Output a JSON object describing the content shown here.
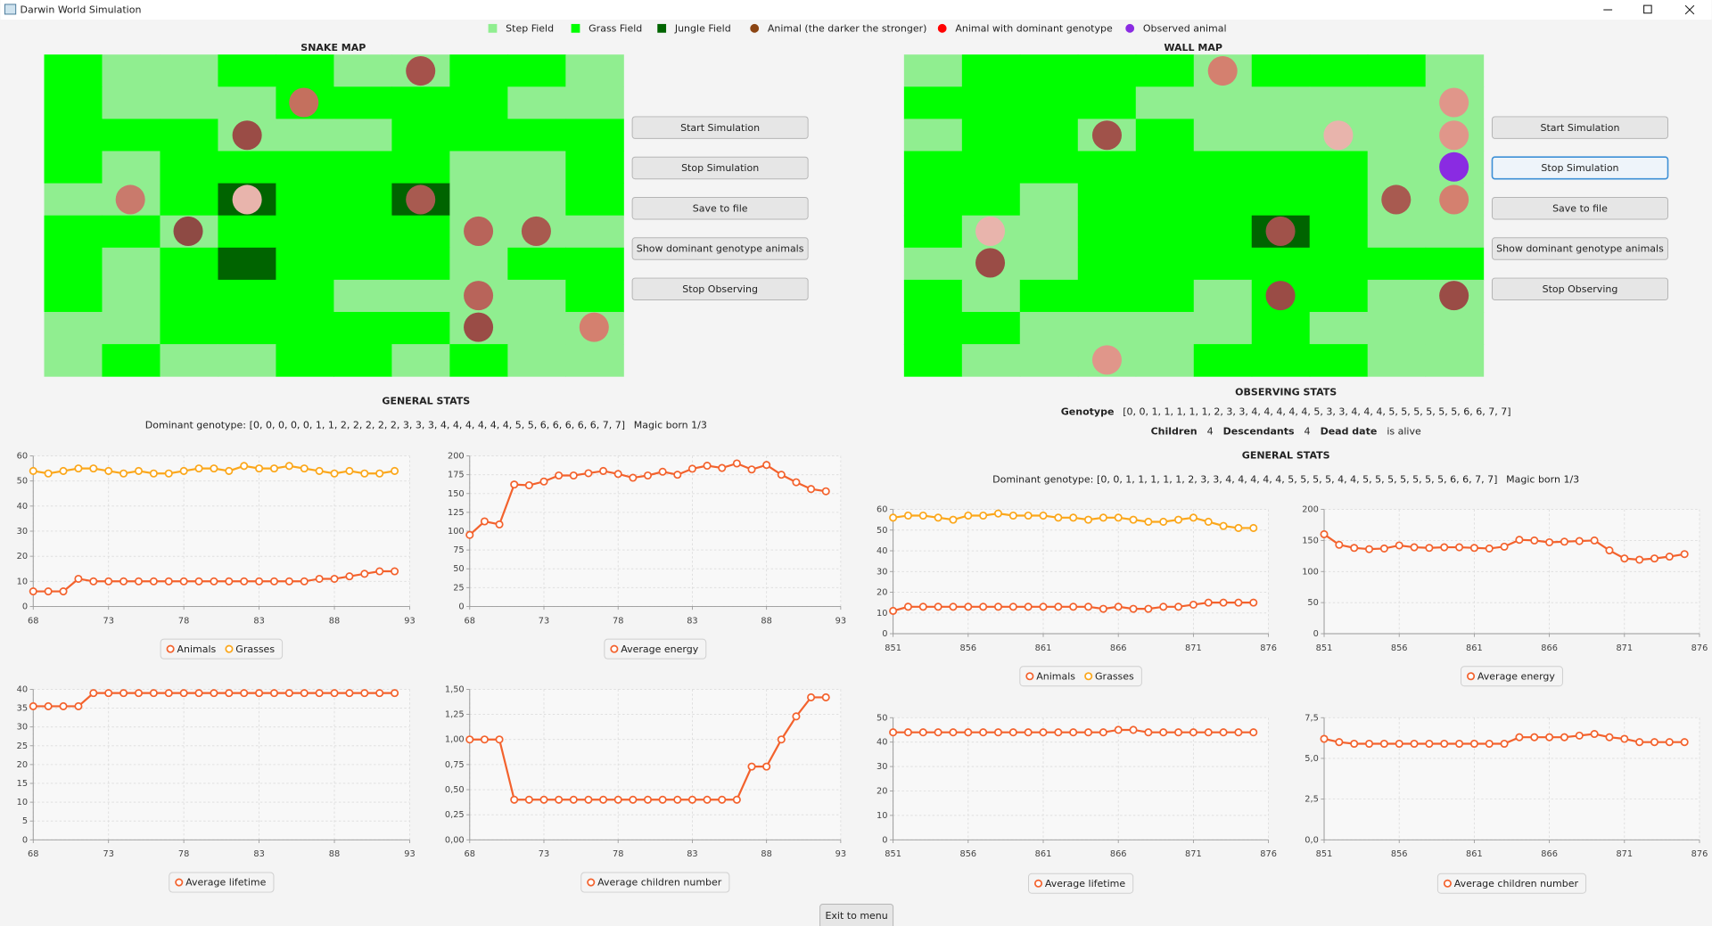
{
  "window": {
    "title": "Darwin World Simulation"
  },
  "legend": [
    "Step Field",
    "Grass Field",
    "Jungle Field",
    "Animal (the darker the stronger)",
    "Animal with dominant genotype",
    "Observed animal"
  ],
  "panels": [
    {
      "map_title": "SNAKE MAP",
      "buttons": [
        "Start Simulation",
        "Stop Simulation",
        "Save to file",
        "Show dominant genotype animals",
        "Stop Observing"
      ],
      "general_title": "GENERAL STATS",
      "dominant_genotype_label": "Dominant genotype:",
      "dominant_genotype": "[0, 0, 0, 0, 0, 1, 1, 2, 2, 2, 2, 2, 3, 3, 3, 4, 4, 4, 4, 4, 4, 5, 5, 6, 6, 6, 6, 6, 7, 7]",
      "magic_born": "Magic born 1/3",
      "charts": [
        {
          "type": "line",
          "x": [
            68,
            69,
            70,
            71,
            72,
            73,
            74,
            75,
            76,
            77,
            78,
            79,
            80,
            81,
            82,
            83,
            84,
            85,
            86,
            87,
            88,
            89,
            90,
            91,
            92
          ],
          "xlim": [
            68,
            93
          ],
          "xticks": [
            68,
            73,
            78,
            83,
            88,
            93
          ],
          "ylim": [
            0,
            60
          ],
          "yticks": [
            0,
            10,
            20,
            30,
            40,
            50,
            60
          ],
          "grid": true,
          "series": [
            {
              "name": "Animals",
              "color": "#f3622d",
              "values": [
                6,
                6,
                6,
                11,
                10,
                10,
                10,
                10,
                10,
                10,
                10,
                10,
                10,
                10,
                10,
                10,
                10,
                10,
                10,
                11,
                11,
                12,
                13,
                14,
                14
              ]
            },
            {
              "name": "Grasses",
              "color": "#fba71b",
              "values": [
                54,
                53,
                54,
                55,
                55,
                54,
                53,
                54,
                53,
                53,
                54,
                55,
                55,
                54,
                56,
                55,
                55,
                56,
                55,
                54,
                53,
                54,
                53,
                53,
                54
              ]
            }
          ]
        },
        {
          "type": "line",
          "x": [
            68,
            69,
            70,
            71,
            72,
            73,
            74,
            75,
            76,
            77,
            78,
            79,
            80,
            81,
            82,
            83,
            84,
            85,
            86,
            87,
            88,
            89,
            90,
            91,
            92
          ],
          "xlim": [
            68,
            93
          ],
          "xticks": [
            68,
            73,
            78,
            83,
            88,
            93
          ],
          "ylim": [
            0,
            200
          ],
          "yticks": [
            0,
            25,
            50,
            75,
            100,
            125,
            150,
            175,
            200
          ],
          "grid": true,
          "series": [
            {
              "name": "Average energy",
              "color": "#f3622d",
              "values": [
                95,
                113,
                109,
                162,
                161,
                166,
                174,
                174,
                177,
                180,
                176,
                171,
                174,
                179,
                175,
                183,
                187,
                184,
                190,
                182,
                188,
                175,
                165,
                156,
                153
              ]
            }
          ]
        },
        {
          "type": "line",
          "x": [
            68,
            69,
            70,
            71,
            72,
            73,
            74,
            75,
            76,
            77,
            78,
            79,
            80,
            81,
            82,
            83,
            84,
            85,
            86,
            87,
            88,
            89,
            90,
            91,
            92
          ],
          "xlim": [
            68,
            93
          ],
          "xticks": [
            68,
            73,
            78,
            83,
            88,
            93
          ],
          "ylim": [
            0,
            40
          ],
          "yticks": [
            0,
            5,
            10,
            15,
            20,
            25,
            30,
            35,
            40
          ],
          "grid": true,
          "series": [
            {
              "name": "Average lifetime",
              "color": "#f3622d",
              "values": [
                35.5,
                35.5,
                35.5,
                35.5,
                39,
                39,
                39,
                39,
                39,
                39,
                39,
                39,
                39,
                39,
                39,
                39,
                39,
                39,
                39,
                39,
                39,
                39,
                39,
                39,
                39
              ]
            }
          ]
        },
        {
          "type": "line",
          "x": [
            68,
            69,
            70,
            71,
            72,
            73,
            74,
            75,
            76,
            77,
            78,
            79,
            80,
            81,
            82,
            83,
            84,
            85,
            86,
            87,
            88,
            89,
            90,
            91,
            92
          ],
          "xlim": [
            68,
            93
          ],
          "xticks": [
            68,
            73,
            78,
            83,
            88,
            93
          ],
          "ylim": [
            0,
            1.5
          ],
          "yticks": [
            {
              "value": 0,
              "label": "0,00"
            },
            {
              "value": 0.25,
              "label": "0,25"
            },
            {
              "value": 0.5,
              "label": "0,50"
            },
            {
              "value": 0.75,
              "label": "0,75"
            },
            {
              "value": 1,
              "label": "1,00"
            },
            {
              "value": 1.25,
              "label": "1,25"
            },
            {
              "value": 1.5,
              "label": "1,50"
            }
          ],
          "grid": true,
          "series": [
            {
              "name": "Average children number",
              "color": "#f3622d",
              "values": [
                1,
                1,
                1,
                0.4,
                0.4,
                0.4,
                0.4,
                0.4,
                0.4,
                0.4,
                0.4,
                0.4,
                0.4,
                0.4,
                0.4,
                0.4,
                0.4,
                0.4,
                0.4,
                0.73,
                0.73,
                1,
                1.23,
                1.42,
                1.42
              ]
            }
          ]
        }
      ]
    },
    {
      "map_title": "WALL MAP",
      "buttons": [
        "Start Simulation",
        "Stop Simulation",
        "Save to file",
        "Show dominant genotype animals",
        "Stop Observing"
      ],
      "observing_title": "OBSERVING STATS",
      "genotype_label": "Genotype",
      "genotype": "[0, 0, 1, 1, 1, 1, 1, 2, 3, 3, 4, 4, 4, 4, 4, 5, 3, 3, 4, 4, 4, 5, 5, 5, 5, 5, 5, 6, 6, 7, 7]",
      "children_label": "Children",
      "children": 4,
      "descendants_label": "Descendants",
      "descendants": 4,
      "dead_date_label": "Dead date",
      "dead_date": "is alive",
      "general_title": "GENERAL STATS",
      "dominant_genotype_label": "Dominant genotype:",
      "dominant_genotype": "[0, 0, 1, 1, 1, 1, 1, 2, 3, 3, 4, 4, 4, 4, 4, 5, 5, 5, 5, 4, 4, 5, 5, 5, 5, 5, 5, 5, 6, 6, 7, 7]",
      "magic_born": "Magic born 1/3",
      "charts": [
        {
          "type": "line",
          "x": [
            851,
            852,
            853,
            854,
            855,
            856,
            857,
            858,
            859,
            860,
            861,
            862,
            863,
            864,
            865,
            866,
            867,
            868,
            869,
            870,
            871,
            872,
            873,
            874,
            875
          ],
          "xlim": [
            851,
            876
          ],
          "xticks": [
            851,
            856,
            861,
            866,
            871,
            876
          ],
          "ylim": [
            0,
            60
          ],
          "yticks": [
            0,
            10,
            20,
            30,
            40,
            50,
            60
          ],
          "grid": true,
          "series": [
            {
              "name": "Animals",
              "color": "#f3622d",
              "values": [
                11,
                13,
                13,
                13,
                13,
                13,
                13,
                13,
                13,
                13,
                13,
                13,
                13,
                13,
                12,
                13,
                12,
                12,
                13,
                13,
                14,
                15,
                15,
                15,
                15
              ]
            },
            {
              "name": "Grasses",
              "color": "#fba71b",
              "values": [
                56,
                57,
                57,
                56,
                55,
                57,
                57,
                58,
                57,
                57,
                57,
                56,
                56,
                55,
                56,
                56,
                55,
                54,
                54,
                55,
                56,
                54,
                52,
                51,
                51
              ]
            }
          ]
        },
        {
          "type": "line",
          "x": [
            851,
            852,
            853,
            854,
            855,
            856,
            857,
            858,
            859,
            860,
            861,
            862,
            863,
            864,
            865,
            866,
            867,
            868,
            869,
            870,
            871,
            872,
            873,
            874,
            875
          ],
          "xlim": [
            851,
            876
          ],
          "xticks": [
            851,
            856,
            861,
            866,
            871,
            876
          ],
          "ylim": [
            0,
            200
          ],
          "yticks": [
            0,
            50,
            100,
            150,
            200
          ],
          "grid": true,
          "series": [
            {
              "name": "Average energy",
              "color": "#f3622d",
              "values": [
                160,
                143,
                138,
                136,
                137,
                142,
                139,
                138,
                139,
                139,
                138,
                137,
                140,
                151,
                150,
                147,
                148,
                149,
                150,
                134,
                121,
                119,
                121,
                124,
                128
              ]
            }
          ]
        },
        {
          "type": "line",
          "x": [
            851,
            852,
            853,
            854,
            855,
            856,
            857,
            858,
            859,
            860,
            861,
            862,
            863,
            864,
            865,
            866,
            867,
            868,
            869,
            870,
            871,
            872,
            873,
            874,
            875
          ],
          "xlim": [
            851,
            876
          ],
          "xticks": [
            851,
            856,
            861,
            866,
            871,
            876
          ],
          "ylim": [
            0,
            50
          ],
          "yticks": [
            0,
            10,
            20,
            30,
            40,
            50
          ],
          "grid": true,
          "series": [
            {
              "name": "Average lifetime",
              "color": "#f3622d",
              "values": [
                44,
                44,
                44,
                44,
                44,
                44,
                44,
                44,
                44,
                44,
                44,
                44,
                44,
                44,
                44,
                45,
                45,
                44,
                44,
                44,
                44,
                44,
                44,
                44,
                44
              ]
            }
          ]
        },
        {
          "type": "line",
          "x": [
            851,
            852,
            853,
            854,
            855,
            856,
            857,
            858,
            859,
            860,
            861,
            862,
            863,
            864,
            865,
            866,
            867,
            868,
            869,
            870,
            871,
            872,
            873,
            874,
            875
          ],
          "xlim": [
            851,
            876
          ],
          "xticks": [
            851,
            856,
            861,
            866,
            871,
            876
          ],
          "ylim": [
            0,
            7.5
          ],
          "yticks": [
            {
              "value": 0,
              "label": "0,0"
            },
            {
              "value": 2.5,
              "label": "2,5"
            },
            {
              "value": 5,
              "label": "5,0"
            },
            {
              "value": 7.5,
              "label": "7,5"
            }
          ],
          "grid": true,
          "series": [
            {
              "name": "Average children number",
              "color": "#f3622d",
              "values": [
                6.2,
                6,
                5.9,
                5.9,
                5.9,
                5.9,
                5.9,
                5.9,
                5.9,
                5.9,
                5.9,
                5.9,
                5.9,
                6.3,
                6.3,
                6.3,
                6.3,
                6.4,
                6.5,
                6.3,
                6.2,
                6,
                6,
                6,
                6
              ]
            }
          ]
        }
      ]
    }
  ],
  "exit_button": "Exit to menu"
}
